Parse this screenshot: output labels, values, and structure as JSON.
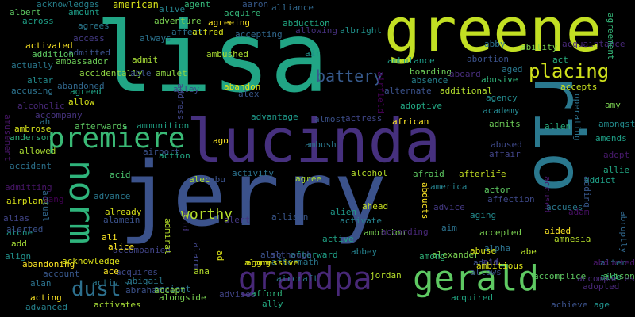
{
  "words": [
    {
      "text": "lisa",
      "color": "#21a585"
    },
    {
      "text": "greene",
      "color": "#c2df23"
    },
    {
      "text": "jerry",
      "color": "#3b528b"
    },
    {
      "text": "lucinda",
      "color": "#46307e"
    },
    {
      "text": "rio",
      "color": "#2a788e"
    },
    {
      "text": "norm",
      "color": "#2fb47c"
    },
    {
      "text": "premiere",
      "color": "#3aba76"
    },
    {
      "text": "grandpa",
      "color": "#482878"
    },
    {
      "text": "gerald",
      "color": "#5ec962"
    },
    {
      "text": "dust",
      "color": "#2d708e"
    },
    {
      "text": "placing",
      "color": "#d0e11c"
    },
    {
      "text": "battery",
      "color": "#375a8c"
    },
    {
      "text": "worthy",
      "color": "#b5de2b"
    },
    {
      "text": "acknowledges",
      "color": "#26828e"
    },
    {
      "text": "american",
      "color": "#d8e219"
    },
    {
      "text": "agent",
      "color": "#35b779"
    },
    {
      "text": "aaron",
      "color": "#375a8c"
    },
    {
      "text": "alliance",
      "color": "#31688e"
    },
    {
      "text": "albert",
      "color": "#5ec962"
    },
    {
      "text": "amount",
      "color": "#1f9e89"
    },
    {
      "text": "alive",
      "color": "#25848e"
    },
    {
      "text": "across",
      "color": "#1fa188"
    },
    {
      "text": "agrees",
      "color": "#2a788e"
    },
    {
      "text": "adventure",
      "color": "#7ad151"
    },
    {
      "text": "acquire",
      "color": "#35b779"
    },
    {
      "text": "abduction",
      "color": "#22a884"
    },
    {
      "text": "access",
      "color": "#443a83"
    },
    {
      "text": "always",
      "color": "#2c728e"
    },
    {
      "text": "affect",
      "color": "#2c728e"
    },
    {
      "text": "alfred",
      "color": "#d8e219"
    },
    {
      "text": "agreeing",
      "color": "#fde725"
    },
    {
      "text": "allowing",
      "color": "#46307e"
    },
    {
      "text": "albright",
      "color": "#20928c"
    },
    {
      "text": "activated",
      "color": "#fde725"
    },
    {
      "text": "admitted",
      "color": "#3b528b"
    },
    {
      "text": "accepting",
      "color": "#31688e"
    },
    {
      "text": "addition",
      "color": "#5ec962"
    },
    {
      "text": "ambassador",
      "color": "#6ece58"
    },
    {
      "text": "actually",
      "color": "#2a788e"
    },
    {
      "text": "accidentally",
      "color": "#90d743"
    },
    {
      "text": "ambushed",
      "color": "#aadc32"
    },
    {
      "text": "air",
      "color": "#21918c"
    },
    {
      "text": "ambulance",
      "color": "#1f9e89"
    },
    {
      "text": "abby",
      "color": "#2c728e"
    },
    {
      "text": "acquaintance",
      "color": "#482878"
    },
    {
      "text": "ability",
      "color": "#7ad151"
    },
    {
      "text": "altar",
      "color": "#228b8d"
    },
    {
      "text": "able",
      "color": "#3b528b"
    },
    {
      "text": "amulet",
      "color": "#90d743"
    },
    {
      "text": "admit",
      "color": "#a5db36"
    },
    {
      "text": "boarding",
      "color": "#6ece58"
    },
    {
      "text": "aboard",
      "color": "#472d7b"
    },
    {
      "text": "abortion",
      "color": "#3b528b"
    },
    {
      "text": "act",
      "color": "#29af7f"
    },
    {
      "text": "aged",
      "color": "#2a788e"
    },
    {
      "text": "agreement",
      "color": "#35b779"
    },
    {
      "text": "abandoned",
      "color": "#31688e"
    },
    {
      "text": "accusing",
      "color": "#2c728e"
    },
    {
      "text": "agreed",
      "color": "#20a386"
    },
    {
      "text": "alley",
      "color": "#3e4989"
    },
    {
      "text": "abandon",
      "color": "#dde318"
    },
    {
      "text": "absence",
      "color": "#26828e"
    },
    {
      "text": "abusive",
      "color": "#31b57b"
    },
    {
      "text": "accepts",
      "color": "#c8e020"
    },
    {
      "text": "airfield",
      "color": "#440154"
    },
    {
      "text": "alternate",
      "color": "#3b528b"
    },
    {
      "text": "additional",
      "color": "#b2dd2d"
    },
    {
      "text": "agency",
      "color": "#238a8d"
    },
    {
      "text": "allow",
      "color": "#d5e21a"
    },
    {
      "text": "alex",
      "color": "#38588c"
    },
    {
      "text": "address",
      "color": "#404688"
    },
    {
      "text": "amy",
      "color": "#7ad151"
    },
    {
      "text": "alcoholic",
      "color": "#482878"
    },
    {
      "text": "accompany",
      "color": "#46337f"
    },
    {
      "text": "advantage",
      "color": "#1f998a"
    },
    {
      "text": "almost",
      "color": "#3b528b"
    },
    {
      "text": "actress",
      "color": "#404688"
    },
    {
      "text": "adoptive",
      "color": "#22a884"
    },
    {
      "text": "academy",
      "color": "#24868e"
    },
    {
      "text": "operating",
      "color": "#2c728e"
    },
    {
      "text": "amongst",
      "color": "#228b8d"
    },
    {
      "text": "ah",
      "color": "#2d708e"
    },
    {
      "text": "ambrose",
      "color": "#d5e21a"
    },
    {
      "text": "afterwards",
      "color": "#5ec962"
    },
    {
      "text": "ammunition",
      "color": "#20a386"
    },
    {
      "text": "african",
      "color": "#fde725"
    },
    {
      "text": "admits",
      "color": "#6ece58"
    },
    {
      "text": "amusement",
      "color": "#481668"
    },
    {
      "text": "anderson",
      "color": "#2fb47c"
    },
    {
      "text": "allowed",
      "color": "#aadc32"
    },
    {
      "text": "airport",
      "color": "#3b528b"
    },
    {
      "text": "ago",
      "color": "#fde725"
    },
    {
      "text": "ambush",
      "color": "#2a788e"
    },
    {
      "text": "abused",
      "color": "#3e4989"
    },
    {
      "text": "allen",
      "color": "#28ae80"
    },
    {
      "text": "amends",
      "color": "#1fa188"
    },
    {
      "text": "adopt",
      "color": "#481a6c"
    },
    {
      "text": "allie",
      "color": "#22a884"
    },
    {
      "text": "action",
      "color": "#22a884"
    },
    {
      "text": "activity",
      "color": "#2c728e"
    },
    {
      "text": "alcohol",
      "color": "#b5de2b"
    },
    {
      "text": "afraid",
      "color": "#5ec962"
    },
    {
      "text": "afterlife",
      "color": "#c2df23"
    },
    {
      "text": "affair",
      "color": "#414487"
    },
    {
      "text": "accident",
      "color": "#2c728e"
    },
    {
      "text": "acid",
      "color": "#4ac16d"
    },
    {
      "text": "alec",
      "color": "#aadc32"
    },
    {
      "text": "abu",
      "color": "#3b528b"
    },
    {
      "text": "agree",
      "color": "#aadc32"
    },
    {
      "text": "america",
      "color": "#26828e"
    },
    {
      "text": "actor",
      "color": "#5ec962"
    },
    {
      "text": "addict",
      "color": "#1fa188"
    },
    {
      "text": "admitting",
      "color": "#481668"
    },
    {
      "text": "airplane",
      "color": "#d8e219"
    },
    {
      "text": "aang",
      "color": "#440154"
    },
    {
      "text": "actual",
      "color": "#31688e"
    },
    {
      "text": "advance",
      "color": "#2a788e"
    },
    {
      "text": "affection",
      "color": "#3e4989"
    },
    {
      "text": "accused",
      "color": "#481668"
    },
    {
      "text": "adding",
      "color": "#38588c"
    },
    {
      "text": "already",
      "color": "#d8e219"
    },
    {
      "text": "alert",
      "color": "#443983"
    },
    {
      "text": "alien",
      "color": "#1f998a"
    },
    {
      "text": "ahead",
      "color": "#c8e020"
    },
    {
      "text": "abducts",
      "color": "#fde725"
    },
    {
      "text": "advice",
      "color": "#443983"
    },
    {
      "text": "aging",
      "color": "#238a8d"
    },
    {
      "text": "accuses",
      "color": "#2a788e"
    },
    {
      "text": "adam",
      "color": "#471063"
    },
    {
      "text": "abruptly",
      "color": "#31688e"
    },
    {
      "text": "alias",
      "color": "#414487"
    },
    {
      "text": "alone",
      "color": "#1f998a"
    },
    {
      "text": "alamein",
      "color": "#3b528b"
    },
    {
      "text": "ali",
      "color": "#fde725"
    },
    {
      "text": "allison",
      "color": "#39568c"
    },
    {
      "text": "activate",
      "color": "#26828e"
    },
    {
      "text": "ambition",
      "color": "#7ad151"
    },
    {
      "text": "aim",
      "color": "#2c728e"
    },
    {
      "text": "alpha",
      "color": "#2c728e"
    },
    {
      "text": "aided",
      "color": "#fde725"
    },
    {
      "text": "alerted",
      "color": "#3b528b"
    },
    {
      "text": "add",
      "color": "#a5db36"
    },
    {
      "text": "accompanied",
      "color": "#414487"
    },
    {
      "text": "amid",
      "color": "#46337f"
    },
    {
      "text": "aftermath",
      "color": "#2a788e"
    },
    {
      "text": "active",
      "color": "#20a386"
    },
    {
      "text": "abbey",
      "color": "#26828e"
    },
    {
      "text": "according",
      "color": "#482878"
    },
    {
      "text": "accepted",
      "color": "#7ad151"
    },
    {
      "text": "amnesia",
      "color": "#b5de2b"
    },
    {
      "text": "alice",
      "color": "#fde725"
    },
    {
      "text": "also",
      "color": "#3b528b"
    },
    {
      "text": "afterward",
      "color": "#1fa188"
    },
    {
      "text": "although",
      "color": "#3e4989"
    },
    {
      "text": "alexander",
      "color": "#7ad151"
    },
    {
      "text": "abuse",
      "color": "#d8e219"
    },
    {
      "text": "abe",
      "color": "#b5de2b"
    },
    {
      "text": "aid",
      "color": "#472d7b"
    },
    {
      "text": "adult",
      "color": "#3b528b"
    },
    {
      "text": "alter",
      "color": "#2c728e"
    },
    {
      "text": "alison",
      "color": "#5ec962"
    },
    {
      "text": "aggressive",
      "color": "#dde318"
    },
    {
      "text": "align",
      "color": "#21918c"
    },
    {
      "text": "abandoning",
      "color": "#fde725"
    },
    {
      "text": "acknowledge",
      "color": "#dde318"
    },
    {
      "text": "acquires",
      "color": "#3e4989"
    },
    {
      "text": "admiral",
      "color": "#b5de2b"
    },
    {
      "text": "alarm",
      "color": "#404688"
    },
    {
      "text": "ad",
      "color": "#dde318"
    },
    {
      "text": "aircraft",
      "color": "#2a788e"
    },
    {
      "text": "among",
      "color": "#31b57b"
    },
    {
      "text": "allows",
      "color": "#3b528b"
    },
    {
      "text": "ambitious",
      "color": "#dde318"
    },
    {
      "text": "abducted",
      "color": "#481668"
    },
    {
      "text": "aide",
      "color": "#2fb47c"
    },
    {
      "text": "along",
      "color": "#d8e219"
    },
    {
      "text": "account",
      "color": "#38588c"
    },
    {
      "text": "ace",
      "color": "#fde725"
    },
    {
      "text": "abigail",
      "color": "#2a788e"
    },
    {
      "text": "ana",
      "color": "#b5de2b"
    },
    {
      "text": "jordan",
      "color": "#b5de2b"
    },
    {
      "text": "accomplice",
      "color": "#5ec962"
    },
    {
      "text": "accompanies",
      "color": "#482878"
    },
    {
      "text": "adopted",
      "color": "#482878"
    },
    {
      "text": "alan",
      "color": "#2c728e"
    },
    {
      "text": "activist",
      "color": "#2a788e"
    },
    {
      "text": "abraham",
      "color": "#3b528b"
    },
    {
      "text": "ancient",
      "color": "#2c728e"
    },
    {
      "text": "accept",
      "color": "#8bd646"
    },
    {
      "text": "acting",
      "color": "#fde725"
    },
    {
      "text": "activates",
      "color": "#a5db36"
    },
    {
      "text": "alongside",
      "color": "#7ad151"
    },
    {
      "text": "advises",
      "color": "#414487"
    },
    {
      "text": "afford",
      "color": "#2fb47c"
    },
    {
      "text": "ally",
      "color": "#25ab82"
    },
    {
      "text": "acquired",
      "color": "#22a884"
    },
    {
      "text": "achieve",
      "color": "#3b528b"
    },
    {
      "text": "age",
      "color": "#21918c"
    },
    {
      "text": "advanced",
      "color": "#26828e"
    }
  ]
}
